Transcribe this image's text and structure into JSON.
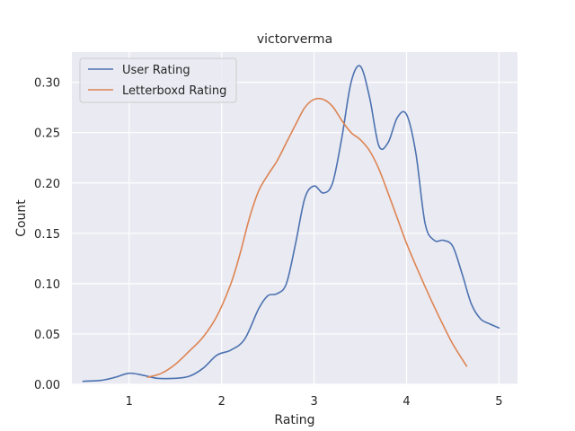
{
  "chart_data": {
    "type": "line",
    "title": "victorverma",
    "xlabel": "Rating",
    "ylabel": "Count",
    "xlim": [
      0.38,
      5.2
    ],
    "ylim": [
      0,
      0.33
    ],
    "xticks": [
      1,
      2,
      3,
      4,
      5
    ],
    "yticks": [
      0.0,
      0.05,
      0.1,
      0.15,
      0.2,
      0.25,
      0.3
    ],
    "ytick_labels": [
      "0.00",
      "0.05",
      "0.10",
      "0.15",
      "0.20",
      "0.25",
      "0.30"
    ],
    "grid": true,
    "legend": "top-left",
    "background": "#eaeaf2",
    "series": [
      {
        "name": "User Rating",
        "color": "#4c72b0",
        "x": [
          0.5,
          0.7,
          0.85,
          1.0,
          1.15,
          1.3,
          1.5,
          1.65,
          1.8,
          1.95,
          2.1,
          2.25,
          2.4,
          2.5,
          2.6,
          2.7,
          2.8,
          2.9,
          3.0,
          3.1,
          3.2,
          3.3,
          3.4,
          3.5,
          3.6,
          3.7,
          3.8,
          3.9,
          4.0,
          4.1,
          4.2,
          4.3,
          4.4,
          4.5,
          4.6,
          4.7,
          4.8,
          4.9,
          5.0
        ],
        "y": [
          0.003,
          0.004,
          0.007,
          0.011,
          0.009,
          0.006,
          0.006,
          0.008,
          0.016,
          0.029,
          0.034,
          0.045,
          0.075,
          0.088,
          0.09,
          0.1,
          0.14,
          0.185,
          0.197,
          0.19,
          0.2,
          0.245,
          0.3,
          0.316,
          0.285,
          0.237,
          0.24,
          0.265,
          0.268,
          0.23,
          0.16,
          0.143,
          0.143,
          0.137,
          0.11,
          0.08,
          0.065,
          0.06,
          0.056
        ]
      },
      {
        "name": "Letterboxd Rating",
        "color": "#dd8452",
        "x": [
          1.2,
          1.35,
          1.5,
          1.65,
          1.8,
          1.95,
          2.1,
          2.2,
          2.3,
          2.4,
          2.5,
          2.6,
          2.7,
          2.8,
          2.9,
          3.0,
          3.1,
          3.2,
          3.3,
          3.4,
          3.5,
          3.6,
          3.7,
          3.8,
          3.9,
          4.0,
          4.1,
          4.2,
          4.3,
          4.4,
          4.5,
          4.65
        ],
        "y": [
          0.007,
          0.011,
          0.02,
          0.033,
          0.047,
          0.068,
          0.1,
          0.13,
          0.165,
          0.192,
          0.208,
          0.222,
          0.24,
          0.258,
          0.275,
          0.283,
          0.283,
          0.276,
          0.262,
          0.25,
          0.243,
          0.232,
          0.214,
          0.19,
          0.165,
          0.14,
          0.118,
          0.097,
          0.077,
          0.058,
          0.04,
          0.018
        ]
      }
    ]
  }
}
